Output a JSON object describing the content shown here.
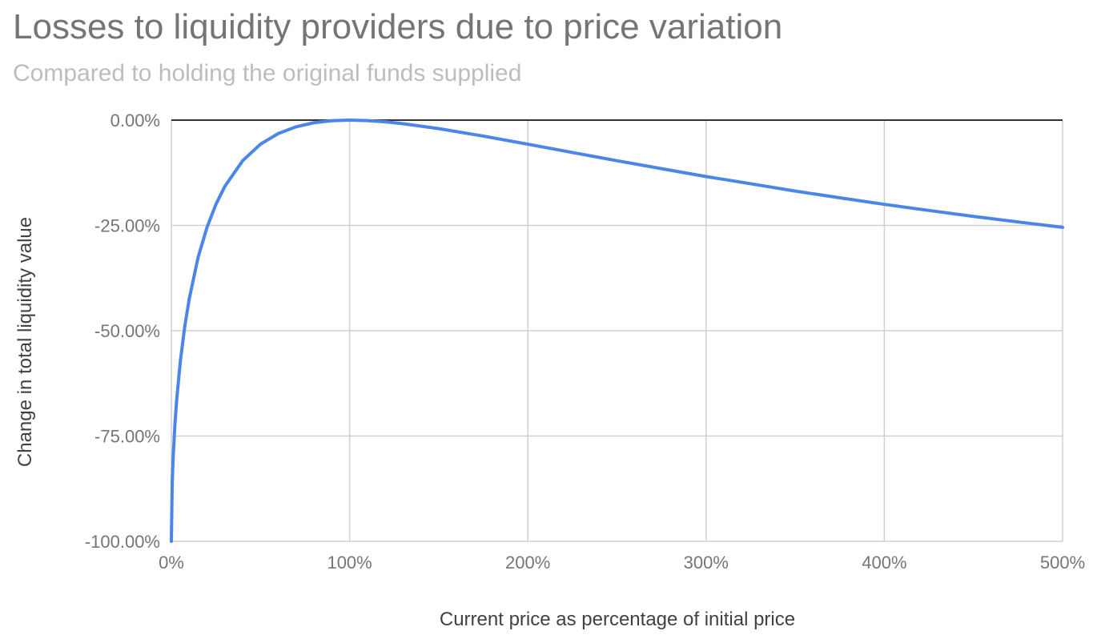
{
  "chart_data": {
    "type": "line",
    "title": "Losses to liquidity providers due to price variation",
    "subtitle": "Compared to holding the original funds supplied",
    "xlabel": "Current price as percentage of initial price",
    "ylabel": "Change in total liquidity value",
    "xlim": [
      0,
      500
    ],
    "ylim": [
      -100,
      0
    ],
    "x_ticks": [
      "0%",
      "100%",
      "200%",
      "300%",
      "400%",
      "500%"
    ],
    "y_ticks": [
      "0.00%",
      "-25.00%",
      "-50.00%",
      "-75.00%",
      "-100.00%"
    ],
    "grid": true,
    "legend": "none",
    "series": [
      {
        "color": "#4a86e8",
        "x": [
          0,
          0.5,
          1,
          2,
          3,
          5,
          7.5,
          10,
          15,
          20,
          25,
          30,
          40,
          50,
          60,
          70,
          80,
          90,
          100,
          110,
          120,
          130,
          150,
          175,
          200,
          225,
          250,
          275,
          300,
          325,
          350,
          375,
          400,
          425,
          450,
          475,
          500
        ],
        "y": [
          -100,
          -85.93,
          -80.2,
          -72.27,
          -66.37,
          -57.4,
          -49.04,
          -42.51,
          -32.58,
          -25.46,
          -20.0,
          -15.73,
          -9.64,
          -5.72,
          -3.18,
          -1.58,
          -0.62,
          -0.14,
          0,
          -0.11,
          -0.41,
          -0.86,
          -2.02,
          -3.79,
          -5.72,
          -7.69,
          -9.64,
          -11.53,
          -13.4,
          -15.1,
          -16.85,
          -18.44,
          -20.0,
          -21.45,
          -22.86,
          -24.18,
          -25.46
        ]
      }
    ]
  }
}
